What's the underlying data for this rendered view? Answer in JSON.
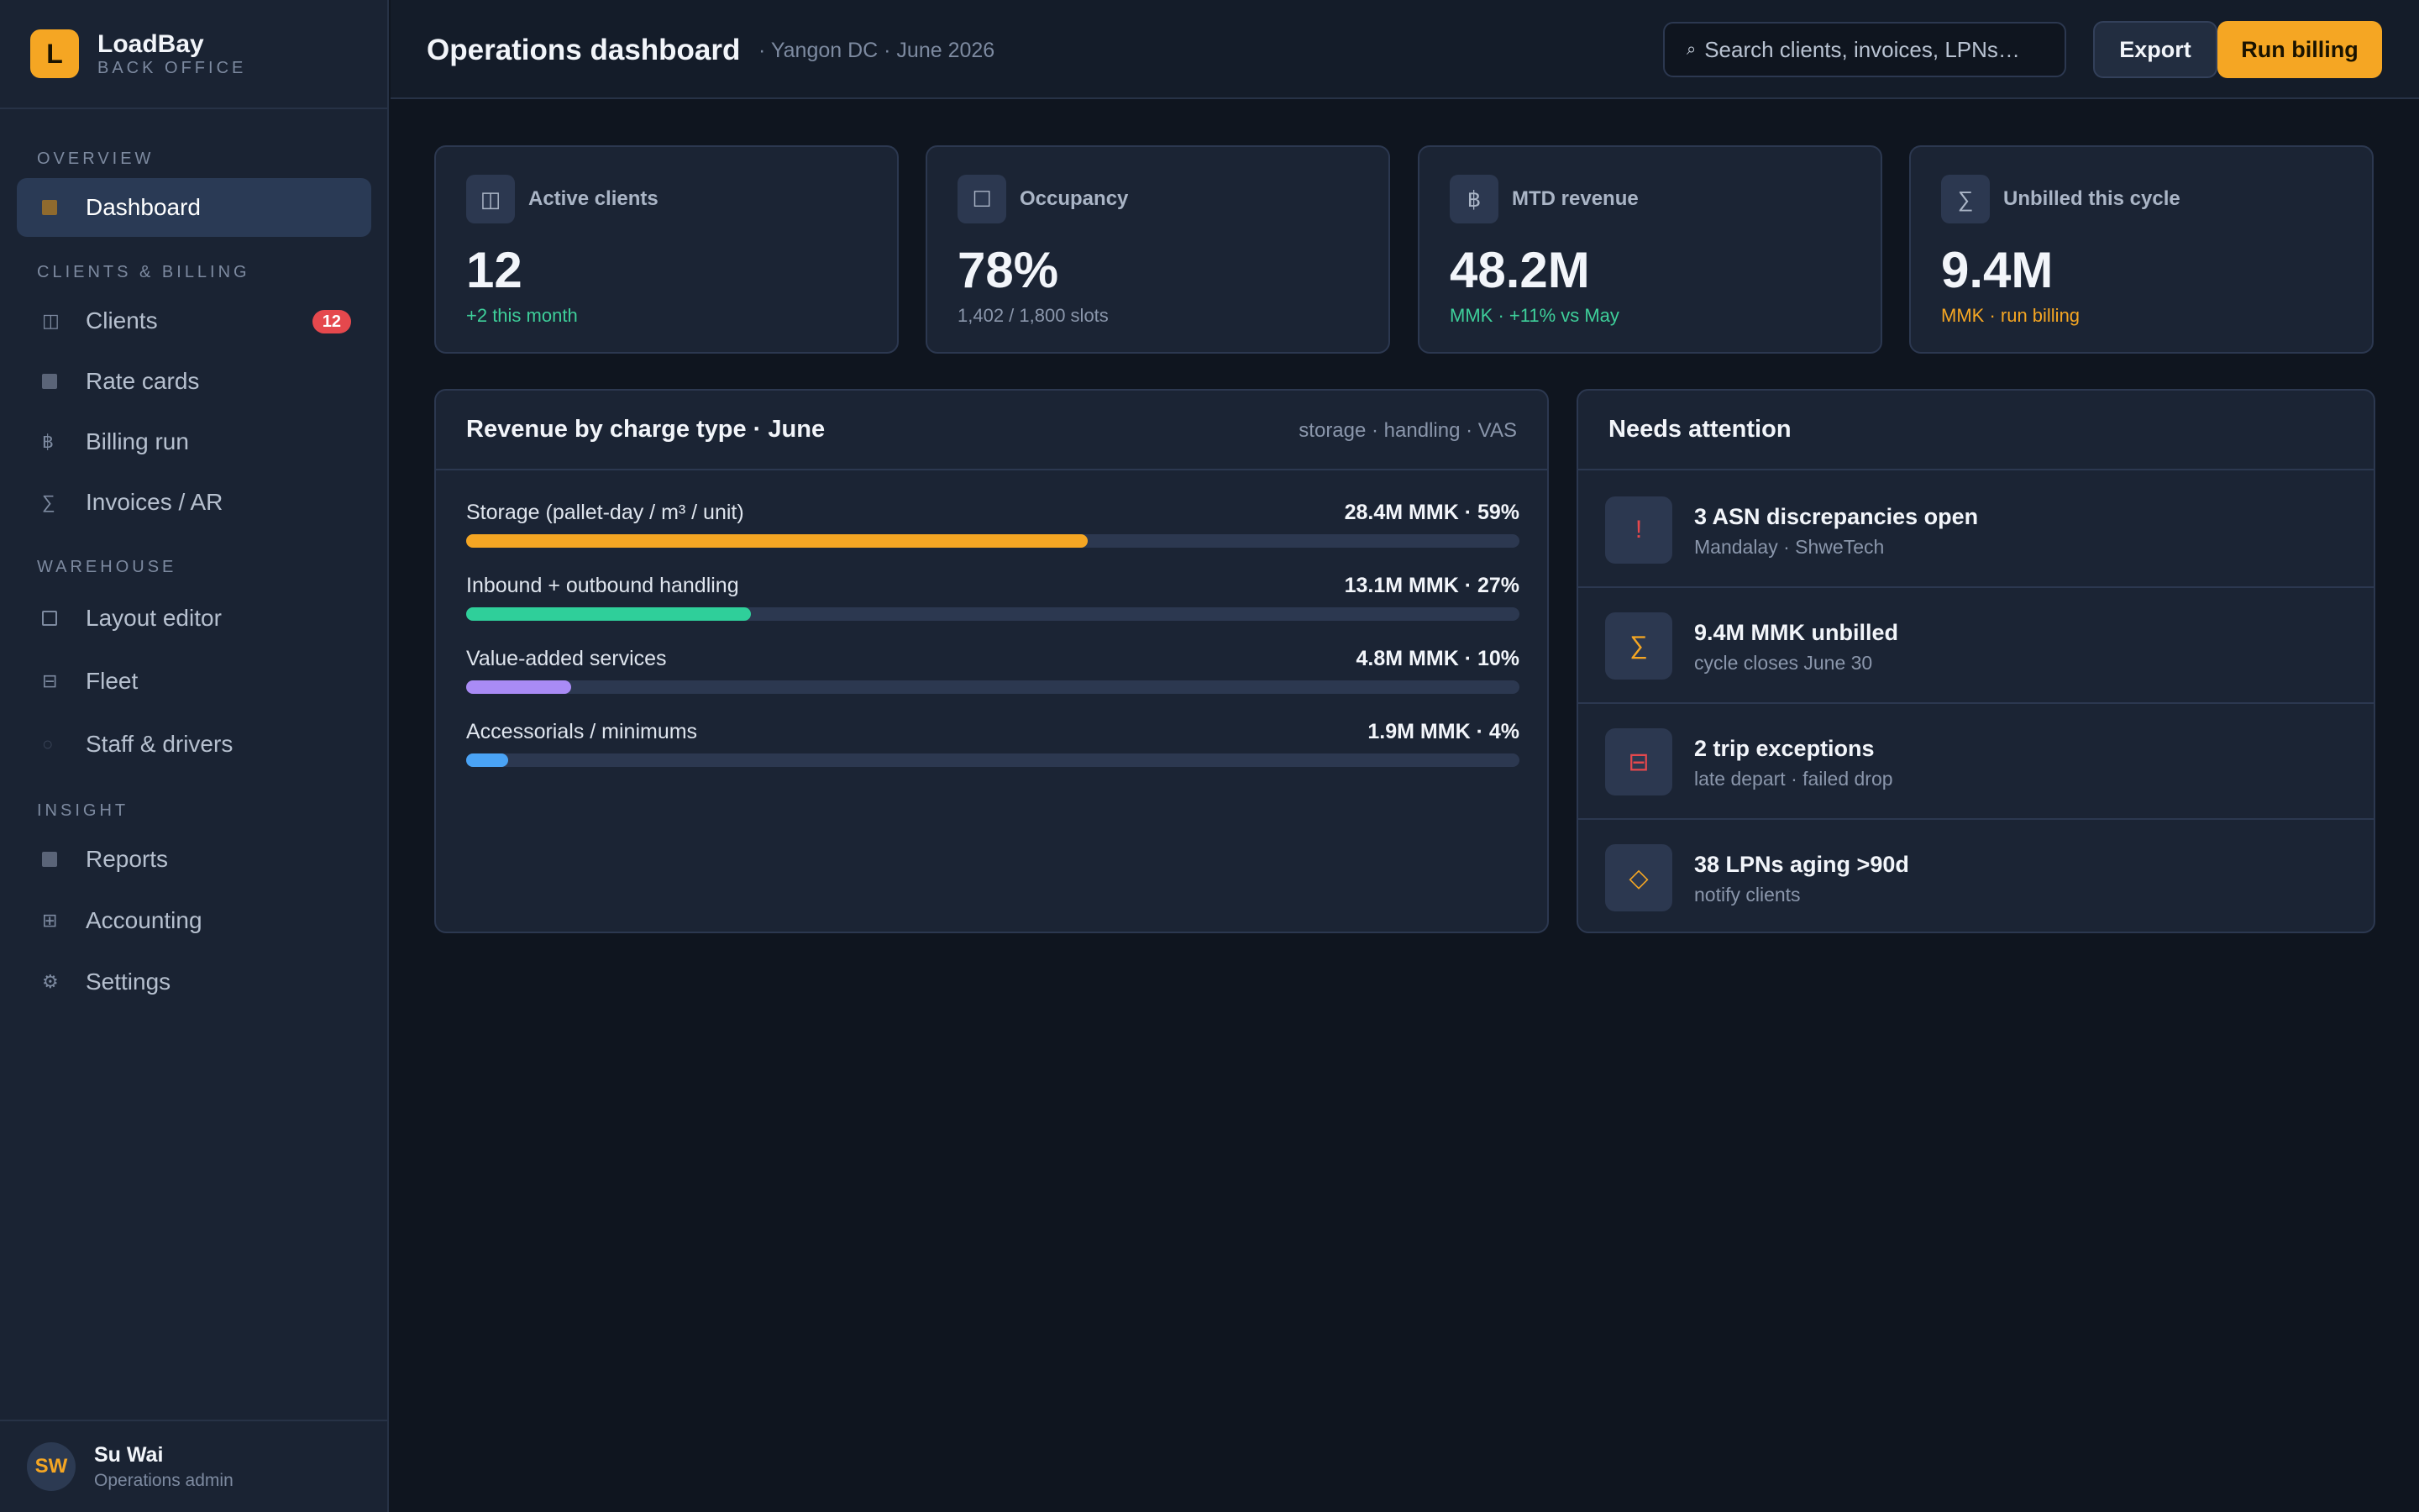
{
  "brand": {
    "name": "LoadBay",
    "subtitle": "BACK OFFICE",
    "logo_letter": "L"
  },
  "sidebar": {
    "sections": [
      {
        "title": "OVERVIEW"
      },
      {
        "title": "CLIENTS & BILLING"
      },
      {
        "title": "WAREHOUSE"
      },
      {
        "title": "INSIGHT"
      }
    ],
    "items": [
      {
        "label": "Dashboard",
        "icon": "dashboard-icon",
        "active": true
      },
      {
        "label": "Clients",
        "icon": "clients-icon",
        "badge": "12"
      },
      {
        "label": "Rate cards",
        "icon": "rate-cards-icon"
      },
      {
        "label": "Billing run",
        "icon": "baht-icon",
        "glyph": "฿"
      },
      {
        "label": "Invoices / AR",
        "icon": "sigma-icon",
        "glyph": "∑"
      },
      {
        "label": "Layout editor",
        "icon": "layout-icon"
      },
      {
        "label": "Fleet",
        "icon": "fleet-icon",
        "glyph": "⊟"
      },
      {
        "label": "Staff & drivers",
        "icon": "staff-icon",
        "glyph": "○"
      },
      {
        "label": "Reports",
        "icon": "reports-icon"
      },
      {
        "label": "Accounting",
        "icon": "accounting-icon",
        "glyph": "⊞"
      },
      {
        "label": "Settings",
        "icon": "gear-icon",
        "glyph": "⚙"
      }
    ]
  },
  "user": {
    "initials": "SW",
    "name": "Su Wai",
    "role": "Operations admin"
  },
  "header": {
    "title": "Operations dashboard",
    "subtitle": "· Yangon DC · June 2026",
    "search_placeholder": "Search clients, invoices, LPNs…",
    "search_glyph": "⌕",
    "export_label": "Export",
    "run_billing_label": "Run billing"
  },
  "kpis": [
    {
      "title": "Active clients",
      "value": "12",
      "note": "+2 this month",
      "note_color": "#3ecf9a",
      "glyph": "◫"
    },
    {
      "title": "Occupancy",
      "value": "78%",
      "note": "1,402 / 1,800 slots",
      "note_color": "#8a96ab",
      "glyph": "☐"
    },
    {
      "title": "MTD revenue",
      "value": "48.2M",
      "note": "MMK · +11% vs May",
      "note_color": "#3ecf9a",
      "glyph": "฿"
    },
    {
      "title": "Unbilled this cycle",
      "value": "9.4M",
      "note": "MMK · run billing",
      "note_color": "#f5a623",
      "glyph": "∑"
    }
  ],
  "revenue": {
    "title": "Revenue by charge type · June",
    "tag": "storage · handling · VAS",
    "rows": [
      {
        "label": "Storage (pallet-day / m³ / unit)",
        "value": "28.4M MMK · 59%",
        "fraction": 0.59,
        "color": "#f5a623"
      },
      {
        "label": "Inbound + outbound handling",
        "value": "13.1M MMK · 27%",
        "fraction": 0.27,
        "color": "#2fcf9a"
      },
      {
        "label": "Value-added services",
        "value": "4.8M MMK · 10%",
        "fraction": 0.1,
        "color": "#a98bf5"
      },
      {
        "label": "Accessorials / minimums",
        "value": "1.9M MMK · 4%",
        "fraction": 0.04,
        "color": "#4aa3f5"
      }
    ]
  },
  "attention": {
    "title": "Needs attention",
    "items": [
      {
        "title": "3 ASN discrepancies open",
        "sub": "Mandalay · ShweTech",
        "glyph": "!",
        "icon": "alert-icon",
        "color": "#e5484d"
      },
      {
        "title": "9.4M MMK unbilled",
        "sub": "cycle closes June 30",
        "glyph": "∑",
        "icon": "sigma-icon",
        "color": "#f5a623"
      },
      {
        "title": "2 trip exceptions",
        "sub": "late depart · failed drop",
        "glyph": "⊟",
        "icon": "truck-icon",
        "color": "#e5484d"
      },
      {
        "title": "38 LPNs aging >90d",
        "sub": "notify clients",
        "glyph": "◇",
        "icon": "diamond-icon",
        "color": "#f5a623"
      }
    ]
  }
}
